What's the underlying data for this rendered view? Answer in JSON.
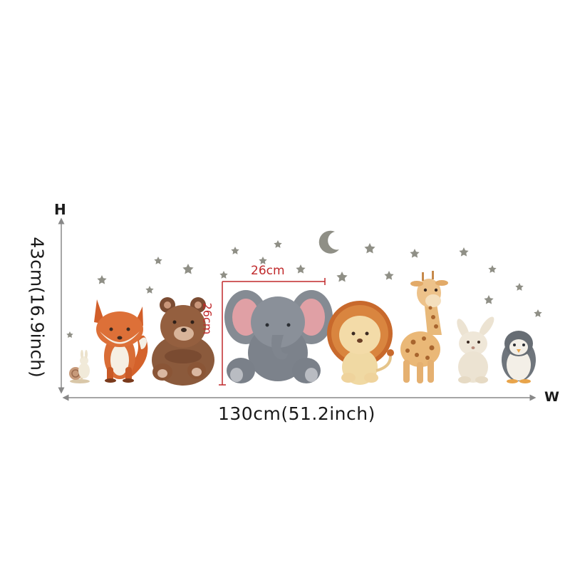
{
  "labels": {
    "height_axis": "H",
    "width_axis": "W",
    "total_width": "130cm(51.2inch)",
    "total_height": "43cm(16.9inch)",
    "elephant_width": "26cm",
    "elephant_height": "26cm"
  },
  "animals": [
    "snail",
    "bunny",
    "fox",
    "bear",
    "elephant",
    "lion",
    "giraffe",
    "rabbit",
    "penguin"
  ],
  "decorations": [
    "stars",
    "moon"
  ],
  "colors": {
    "background": "#ffffff",
    "dimension_lines": "#888888",
    "highlight_lines": "#c0292b",
    "stars": "#8f8f86"
  }
}
